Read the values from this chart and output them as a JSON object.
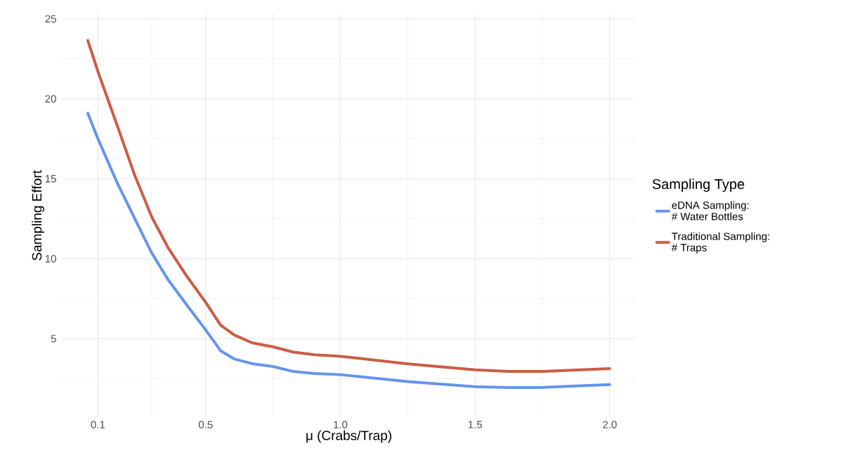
{
  "chart_data": {
    "type": "line",
    "xlabel": "μ  (Crabs/Trap)",
    "ylabel": "Sampling Effort",
    "legend_title": "Sampling Type",
    "xlim": [
      -0.034,
      2.097
    ],
    "ylim": [
      0.1,
      25.3
    ],
    "xticks": [
      0.1,
      0.5,
      {
        "value": 1,
        "label": "1.0"
      },
      1.5,
      {
        "value": 2,
        "label": "2.0"
      }
    ],
    "yticks": [
      5,
      10,
      15,
      20,
      25
    ],
    "grid": true,
    "legend": "right",
    "line_style": "solid",
    "x": [
      0.0625,
      0.1,
      0.17,
      0.237,
      0.3,
      0.36,
      0.43,
      0.5,
      0.555,
      0.605,
      0.672,
      0.75,
      0.825,
      0.904,
      1.0,
      1.25,
      1.5,
      1.625,
      1.75,
      2.0
    ],
    "series": [
      {
        "name": "eDNA Sampling:\n# Water Bottles",
        "color": "#6495ed",
        "values": [
          19.1,
          17.5,
          14.8,
          12.5,
          10.35,
          8.7,
          7.1,
          5.55,
          4.25,
          3.74,
          3.44,
          3.26,
          2.95,
          2.82,
          2.75,
          2.32,
          2.0,
          1.94,
          1.95,
          2.13
        ]
      },
      {
        "name": "Traditional Sampling:\n# Traps",
        "color": "#cd5c46",
        "values": [
          23.65,
          21.7,
          18.4,
          15.2,
          12.6,
          10.7,
          8.9,
          7.27,
          5.86,
          5.24,
          4.74,
          4.49,
          4.16,
          4.0,
          3.9,
          3.43,
          3.05,
          2.95,
          2.95,
          3.13
        ]
      }
    ]
  }
}
